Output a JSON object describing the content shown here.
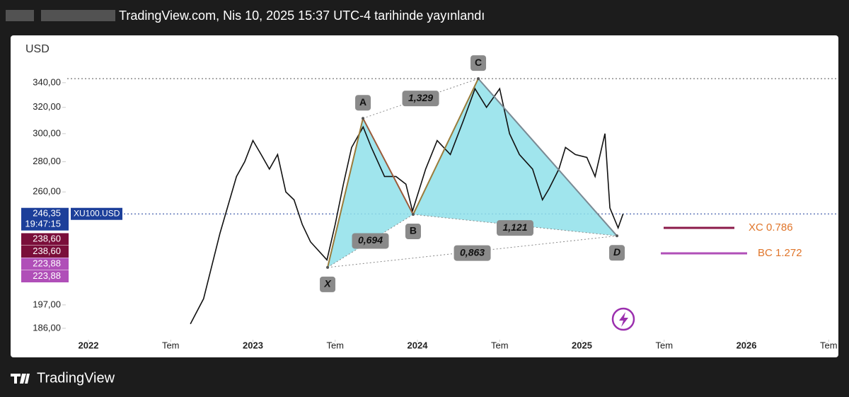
{
  "header": {
    "published": "TradingView.com, Nis 10, 2025 15:37 UTC-4 tarihinde yayınlandı"
  },
  "footer": {
    "brand": "TradingView"
  },
  "chart_data": {
    "type": "line",
    "currency": "USD",
    "symbol": "XU100.USD",
    "log_scale": true,
    "x": [
      2022.62,
      2022.7,
      2022.8,
      2022.9,
      2022.95,
      2023.0,
      2023.05,
      2023.1,
      2023.15,
      2023.2,
      2023.25,
      2023.3,
      2023.35,
      2023.45,
      2023.5,
      2023.55,
      2023.6,
      2023.67,
      2023.72,
      2023.8,
      2023.87,
      2023.93,
      2023.97,
      2024.05,
      2024.12,
      2024.2,
      2024.28,
      2024.35,
      2024.42,
      2024.5,
      2024.56,
      2024.62,
      2024.7,
      2024.76,
      2024.8,
      2024.86,
      2024.9,
      2024.96,
      2025.03,
      2025.08,
      2025.14,
      2025.17,
      2025.22,
      2025.25
    ],
    "series": [
      {
        "color": "#111111",
        "values": [
          188,
          200,
          235,
          270,
          280,
          295,
          285,
          275,
          285,
          260,
          255,
          240,
          230,
          220,
          240,
          265,
          290,
          305,
          290,
          270,
          270,
          265,
          248,
          275,
          295,
          285,
          310,
          335,
          320,
          335,
          300,
          285,
          275,
          255,
          262,
          275,
          290,
          285,
          283,
          270,
          300,
          250,
          238,
          246.35
        ]
      }
    ],
    "pattern": {
      "fill": "#8fe0ea",
      "edge_colors": [
        "#9a7b3a",
        "#9a5a3a",
        "#9a7b3a",
        "#7a8a94"
      ],
      "points": [
        {
          "label": "X",
          "x": 2023.454,
          "y": 216
        },
        {
          "label": "A",
          "x": 2023.669,
          "y": 311.5
        },
        {
          "label": "B",
          "x": 2023.974,
          "y": 246
        },
        {
          "label": "C",
          "x": 2024.37,
          "y": 343.4
        },
        {
          "label": "D",
          "x": 2025.213,
          "y": 233.4
        }
      ],
      "ratios": [
        {
          "value": 0.694,
          "label": "0,694"
        },
        {
          "value": 1.329,
          "label": "1,329"
        },
        {
          "value": 1.121,
          "label": "1,121"
        },
        {
          "value": 0.863,
          "label": "0,863"
        }
      ]
    },
    "targets": [
      {
        "label": "XC 0.786",
        "color": "#8b1a4a"
      },
      {
        "label": "BC 1.272",
        "color": "#b04fb8"
      }
    ],
    "price_tags": [
      {
        "value": 246.35,
        "label": "246,35",
        "color": "#1c3f9a"
      },
      {
        "value": 238.6,
        "label": "238,60",
        "color": "#7a0e3a"
      },
      {
        "value": 238.6,
        "label": "238,60",
        "color": "#7a0e3a"
      },
      {
        "value": 223.88,
        "label": "223,88",
        "color": "#b04fb8"
      },
      {
        "value": 223.88,
        "label": "223,88",
        "color": "#b04fb8"
      }
    ],
    "last_time": "19:47:15",
    "ylim": [
      181.5,
      374
    ],
    "yticks": [
      {
        "value": 186,
        "label": "186,00"
      },
      {
        "value": 197,
        "label": "197,00"
      },
      {
        "value": 260,
        "label": "260,00"
      },
      {
        "value": 280,
        "label": "280,00"
      },
      {
        "value": 300,
        "label": "300,00"
      },
      {
        "value": 320,
        "label": "320,00"
      },
      {
        "value": 340,
        "label": "340,00"
      }
    ],
    "xlim": [
      2021.527,
      2026.559
    ],
    "xticks": [
      {
        "value": 2022,
        "label": "2022"
      },
      {
        "value": 2022.5,
        "label": "Tem"
      },
      {
        "value": 2023,
        "label": "2023"
      },
      {
        "value": 2023.5,
        "label": "Tem"
      },
      {
        "value": 2024,
        "label": "2024"
      },
      {
        "value": 2024.5,
        "label": "Tem"
      },
      {
        "value": 2025,
        "label": "2025"
      },
      {
        "value": 2025.5,
        "label": "Tem"
      },
      {
        "value": 2026,
        "label": "2026"
      },
      {
        "value": 2026.5,
        "label": "Tem"
      }
    ]
  }
}
